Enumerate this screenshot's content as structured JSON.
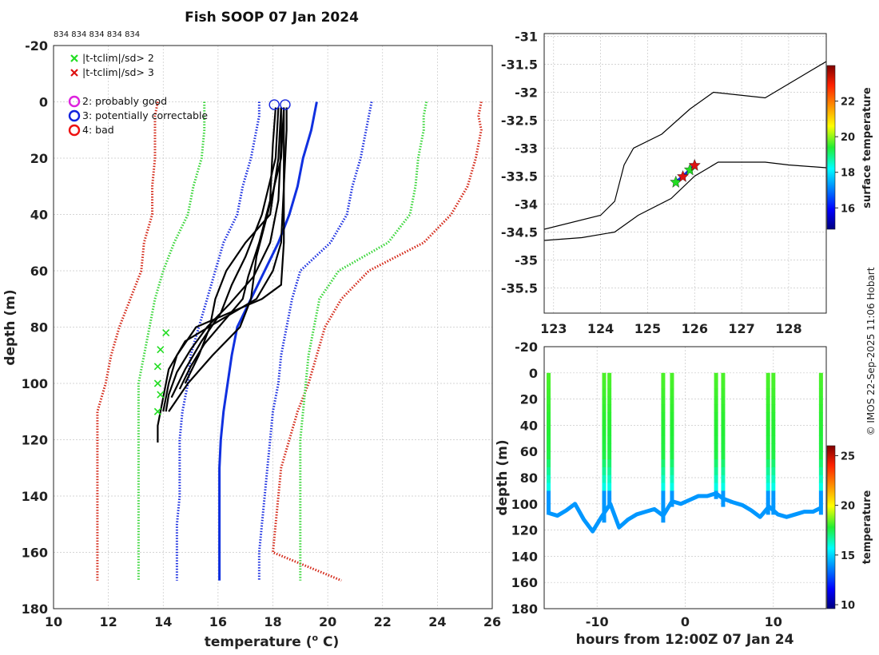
{
  "figure": {
    "title": "Fish SOOP 07 Jan 2024",
    "counts_label": "834 834 834 834 834",
    "credit": "© IMOS 22-Sep-2025 11:06 Hobart"
  },
  "legend": {
    "flags": [
      {
        "marker": "x",
        "color": "#22dd22",
        "label": "|t-tclim|/sd> 2"
      },
      {
        "marker": "x",
        "color": "#dd1111",
        "label": "|t-tclim|/sd> 3"
      }
    ],
    "qc": [
      {
        "marker": "o",
        "color": "#dd22dd",
        "label": "2: probably good"
      },
      {
        "marker": "o",
        "color": "#1122dd",
        "label": "3: potentially correctable"
      },
      {
        "marker": "o",
        "color": "#ee1111",
        "label": "4: bad"
      }
    ]
  },
  "colors": {
    "climatology_1sd": "#1a2ee0",
    "climatology_2sd": "#3ad63a",
    "climatology_3sd": "#d42a1a",
    "profiles": "#000000",
    "mean_profile": "#1030e0"
  },
  "chart_data": [
    {
      "id": "profiles",
      "type": "line",
      "xlabel": "temperature (",
      "xlabel_sup": "o",
      "xlabel_tail": " C)",
      "ylabel": "depth (m)",
      "xlim": [
        10,
        26
      ],
      "ylim": [
        -20,
        180
      ],
      "xticks": [
        10,
        12,
        14,
        16,
        18,
        20,
        22,
        24,
        26
      ],
      "yticks": [
        -20,
        0,
        20,
        40,
        60,
        80,
        100,
        120,
        140,
        160,
        180
      ],
      "grid": true,
      "climatology_depths": [
        0,
        5,
        10,
        20,
        30,
        40,
        50,
        60,
        70,
        80,
        90,
        100,
        110,
        120,
        130,
        140,
        150,
        160,
        170
      ],
      "climatology": [
        {
          "name": "mean",
          "color": "#1030e0",
          "style": "solid",
          "temps": [
            19.6,
            19.5,
            19.4,
            19.1,
            18.9,
            18.6,
            18.2,
            17.7,
            17.2,
            16.7,
            16.5,
            16.35,
            16.2,
            16.1,
            16.05,
            16.05,
            16.05,
            16.05,
            16.05
          ]
        },
        {
          "name": "-3sd",
          "color": "#d42a1a",
          "style": "dotted",
          "temps": [
            13.8,
            13.7,
            13.7,
            13.7,
            13.6,
            13.6,
            13.3,
            13.2,
            12.8,
            12.4,
            12.1,
            11.9,
            11.6,
            11.6,
            11.6,
            11.6,
            11.6,
            11.6,
            11.6
          ]
        },
        {
          "name": "+3sd",
          "color": "#d42a1a",
          "style": "dotted",
          "temps": [
            25.6,
            25.5,
            25.6,
            25.4,
            25.1,
            24.5,
            23.5,
            21.5,
            20.5,
            19.9,
            19.6,
            19.3,
            18.9,
            18.6,
            18.3,
            18.2,
            18.1,
            18.0,
            20.5
          ]
        },
        {
          "name": "-2sd",
          "color": "#3ad63a",
          "style": "dotted",
          "temps": [
            15.5,
            15.5,
            15.5,
            15.4,
            15.1,
            14.9,
            14.4,
            14.0,
            13.7,
            13.5,
            13.3,
            13.1,
            13.1,
            13.1,
            13.1,
            13.1,
            13.1,
            13.1,
            13.1
          ]
        },
        {
          "name": "+2sd",
          "color": "#3ad63a",
          "style": "dotted",
          "temps": [
            23.6,
            23.5,
            23.5,
            23.3,
            23.2,
            23.0,
            22.2,
            20.4,
            19.7,
            19.5,
            19.3,
            19.2,
            19.1,
            19.0,
            19.0,
            19.0,
            19.0,
            19.0,
            19.0
          ]
        },
        {
          "name": "-1sd",
          "color": "#1a2ee0",
          "style": "dotted",
          "temps": [
            17.5,
            17.5,
            17.4,
            17.2,
            16.9,
            16.7,
            16.2,
            15.9,
            15.6,
            15.3,
            15.0,
            14.9,
            14.7,
            14.6,
            14.6,
            14.6,
            14.5,
            14.5,
            14.5
          ]
        },
        {
          "name": "+1sd",
          "color": "#1a2ee0",
          "style": "dotted",
          "temps": [
            21.6,
            21.5,
            21.4,
            21.2,
            20.9,
            20.7,
            20.1,
            19.0,
            18.7,
            18.5,
            18.3,
            18.2,
            18.0,
            17.9,
            17.8,
            17.7,
            17.6,
            17.5,
            17.5
          ]
        }
      ],
      "profiles": [
        {
          "depths": [
            2,
            10,
            30,
            50,
            65,
            70,
            80,
            90,
            100,
            110
          ],
          "temps": [
            18.4,
            18.4,
            18.4,
            18.4,
            18.3,
            17.6,
            15.2,
            14.5,
            14.2,
            14.0
          ]
        },
        {
          "depths": [
            2,
            10,
            30,
            50,
            60,
            70,
            78,
            85,
            95,
            105,
            115,
            121
          ],
          "temps": [
            18.5,
            18.5,
            18.4,
            18.3,
            18.0,
            17.4,
            16.0,
            14.8,
            14.2,
            14.0,
            13.8,
            13.8
          ]
        },
        {
          "depths": [
            2,
            15,
            35,
            50,
            62,
            72,
            80,
            88,
            96,
            104,
            110
          ],
          "temps": [
            18.3,
            18.3,
            18.2,
            17.9,
            17.3,
            16.4,
            15.6,
            15.0,
            14.5,
            14.2,
            14.1
          ]
        },
        {
          "depths": [
            2,
            20,
            40,
            55,
            65,
            75,
            85,
            95,
            105
          ],
          "temps": [
            18.2,
            18.1,
            17.6,
            17.0,
            16.5,
            16.1,
            15.4,
            14.8,
            14.3
          ]
        },
        {
          "depths": [
            2,
            20,
            40,
            55,
            70,
            80,
            90,
            100,
            110
          ],
          "temps": [
            18.4,
            18.3,
            17.8,
            17.4,
            17.2,
            16.8,
            15.8,
            14.9,
            14.2
          ]
        },
        {
          "depths": [
            2,
            15,
            35,
            50,
            62,
            70,
            78,
            86,
            94,
            102
          ],
          "temps": [
            18.1,
            18.0,
            17.9,
            17.5,
            17.1,
            16.9,
            16.2,
            15.5,
            15.0,
            14.6
          ]
        },
        {
          "depths": [
            2,
            20,
            40,
            50,
            60,
            70,
            80,
            90,
            100
          ],
          "temps": [
            18.3,
            18.2,
            17.9,
            17.0,
            16.3,
            15.9,
            15.7,
            15.3,
            14.8
          ]
        }
      ],
      "flag2_points": [
        [
          14.1,
          82
        ],
        [
          13.9,
          88
        ],
        [
          13.8,
          94
        ],
        [
          13.8,
          100
        ],
        [
          13.9,
          104
        ],
        [
          13.8,
          110
        ]
      ],
      "qc_circles": [
        [
          18.05,
          1
        ],
        [
          18.45,
          1
        ]
      ],
      "counts_label": "834 834 834 834 834"
    },
    {
      "id": "map",
      "type": "scatter",
      "xlim": [
        122.8,
        128.8
      ],
      "ylim": [
        -35.95,
        -30.95
      ],
      "xticks": [
        123,
        124,
        125,
        126,
        127,
        128
      ],
      "yticks": [
        -31,
        -31.5,
        -32,
        -32.5,
        -33,
        -33.5,
        -34,
        -34.5,
        -35,
        -35.5
      ],
      "grid": true,
      "coast_upper": [
        [
          122.8,
          -34.45
        ],
        [
          124.0,
          -34.2
        ],
        [
          124.3,
          -33.95
        ],
        [
          124.5,
          -33.3
        ],
        [
          124.7,
          -33.0
        ],
        [
          125.3,
          -32.75
        ],
        [
          125.9,
          -32.3
        ],
        [
          126.4,
          -32.0
        ],
        [
          127.5,
          -32.1
        ],
        [
          128.3,
          -31.7
        ],
        [
          128.8,
          -31.45
        ]
      ],
      "coast_lower": [
        [
          122.8,
          -34.65
        ],
        [
          123.6,
          -34.6
        ],
        [
          124.3,
          -34.5
        ],
        [
          124.8,
          -34.2
        ],
        [
          125.5,
          -33.9
        ],
        [
          126.0,
          -33.5
        ],
        [
          126.5,
          -33.25
        ],
        [
          127.5,
          -33.25
        ],
        [
          128.0,
          -33.3
        ],
        [
          128.8,
          -33.35
        ]
      ],
      "track": [
        [
          125.6,
          -33.6
        ],
        [
          125.75,
          -33.5
        ],
        [
          125.9,
          -33.38
        ],
        [
          126.0,
          -33.3
        ]
      ],
      "colorbar": {
        "label": "surface temperature",
        "ticks": [
          16,
          18,
          20,
          22
        ],
        "range": [
          14.8,
          24.0
        ]
      }
    },
    {
      "id": "timeseries",
      "type": "scatter",
      "xlabel": "hours from 12:00Z 07 Jan 24",
      "ylabel": "depth (m)",
      "xlim": [
        -16,
        16
      ],
      "ylim": [
        -20,
        180
      ],
      "xticks": [
        -10,
        0,
        10
      ],
      "yticks": [
        -20,
        0,
        20,
        40,
        60,
        80,
        100,
        120,
        140,
        160,
        180
      ],
      "drops_hours": [
        -15.5,
        -9.2,
        -8.6,
        -2.5,
        -1.5,
        3.5,
        4.3,
        9.4,
        10.0,
        15.4
      ],
      "bottom_track": [
        [
          -15.5,
          107
        ],
        [
          -14.5,
          109
        ],
        [
          -13.5,
          105
        ],
        [
          -12.5,
          100
        ],
        [
          -11.5,
          112
        ],
        [
          -10.5,
          121
        ],
        [
          -9.5,
          110
        ],
        [
          -8.5,
          100
        ],
        [
          -7.5,
          118
        ],
        [
          -6.5,
          112
        ],
        [
          -5.5,
          108
        ],
        [
          -4.5,
          106
        ],
        [
          -3.5,
          104
        ],
        [
          -2.5,
          109
        ],
        [
          -1.5,
          98
        ],
        [
          -0.5,
          100
        ],
        [
          0.5,
          97
        ],
        [
          1.5,
          94
        ],
        [
          2.5,
          94
        ],
        [
          3.5,
          92
        ],
        [
          4.3,
          96
        ],
        [
          5.5,
          99
        ],
        [
          6.5,
          101
        ],
        [
          7.5,
          105
        ],
        [
          8.5,
          110
        ],
        [
          9.5,
          102
        ],
        [
          10.5,
          108
        ],
        [
          11.5,
          110
        ],
        [
          12.5,
          108
        ],
        [
          13.5,
          106
        ],
        [
          14.5,
          106
        ],
        [
          15.4,
          103
        ]
      ],
      "colorbar": {
        "label": "temperature",
        "ticks": [
          10,
          15,
          20,
          25
        ],
        "range": [
          9.6,
          26.0
        ]
      }
    }
  ]
}
